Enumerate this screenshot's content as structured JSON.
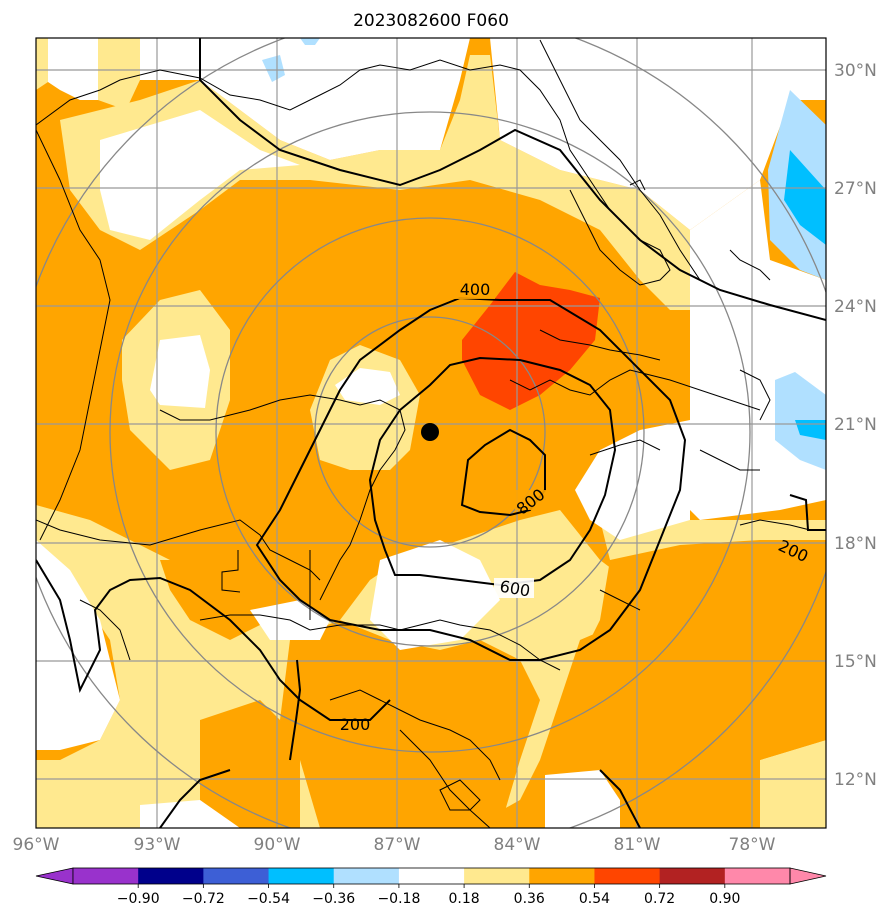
{
  "title": "2023082600 F060",
  "map": {
    "lon_range": [
      -96,
      -76.5
    ],
    "lat_range": [
      10.7,
      30.8
    ],
    "grid_lons": [
      -96,
      -93,
      -90,
      -87,
      -84,
      -81,
      -78
    ],
    "grid_lats": [
      12,
      15,
      18,
      21,
      24,
      27,
      30
    ],
    "lon_labels": [
      "96°W",
      "93°W",
      "90°W",
      "87°W",
      "84°W",
      "81°W",
      "78°W"
    ],
    "lat_labels": [
      "30°N",
      "27°N",
      "24°N",
      "21°N",
      "18°N",
      "15°N",
      "12°N"
    ],
    "storm_center": {
      "lon": -85.9,
      "lat": 20.8
    },
    "range_rings_deg": [
      3,
      5,
      7,
      9
    ]
  },
  "contours": {
    "labels": [
      "400",
      "800",
      "600",
      "200",
      "200"
    ],
    "line_color": "#000000"
  },
  "colorbar": {
    "ticks": [
      "−0.90",
      "−0.72",
      "−0.54",
      "−0.36",
      "−0.18",
      "0.18",
      "0.36",
      "0.54",
      "0.72",
      "0.90"
    ],
    "colors": [
      "#9932cc",
      "#00008b",
      "#3d5fd6",
      "#00bfff",
      "#b0e0ff",
      "#ffffff",
      "#ffe98f",
      "#ffa500",
      "#ff4500",
      "#b22222",
      "#ff88aa",
      "#ff88aa"
    ]
  },
  "fill_colors": {
    "orange": "#ffa500",
    "light_yellow": "#ffe98f",
    "red_orange": "#ff4500",
    "light_blue": "#b0e0ff",
    "blue": "#00bfff",
    "white": "#ffffff"
  }
}
